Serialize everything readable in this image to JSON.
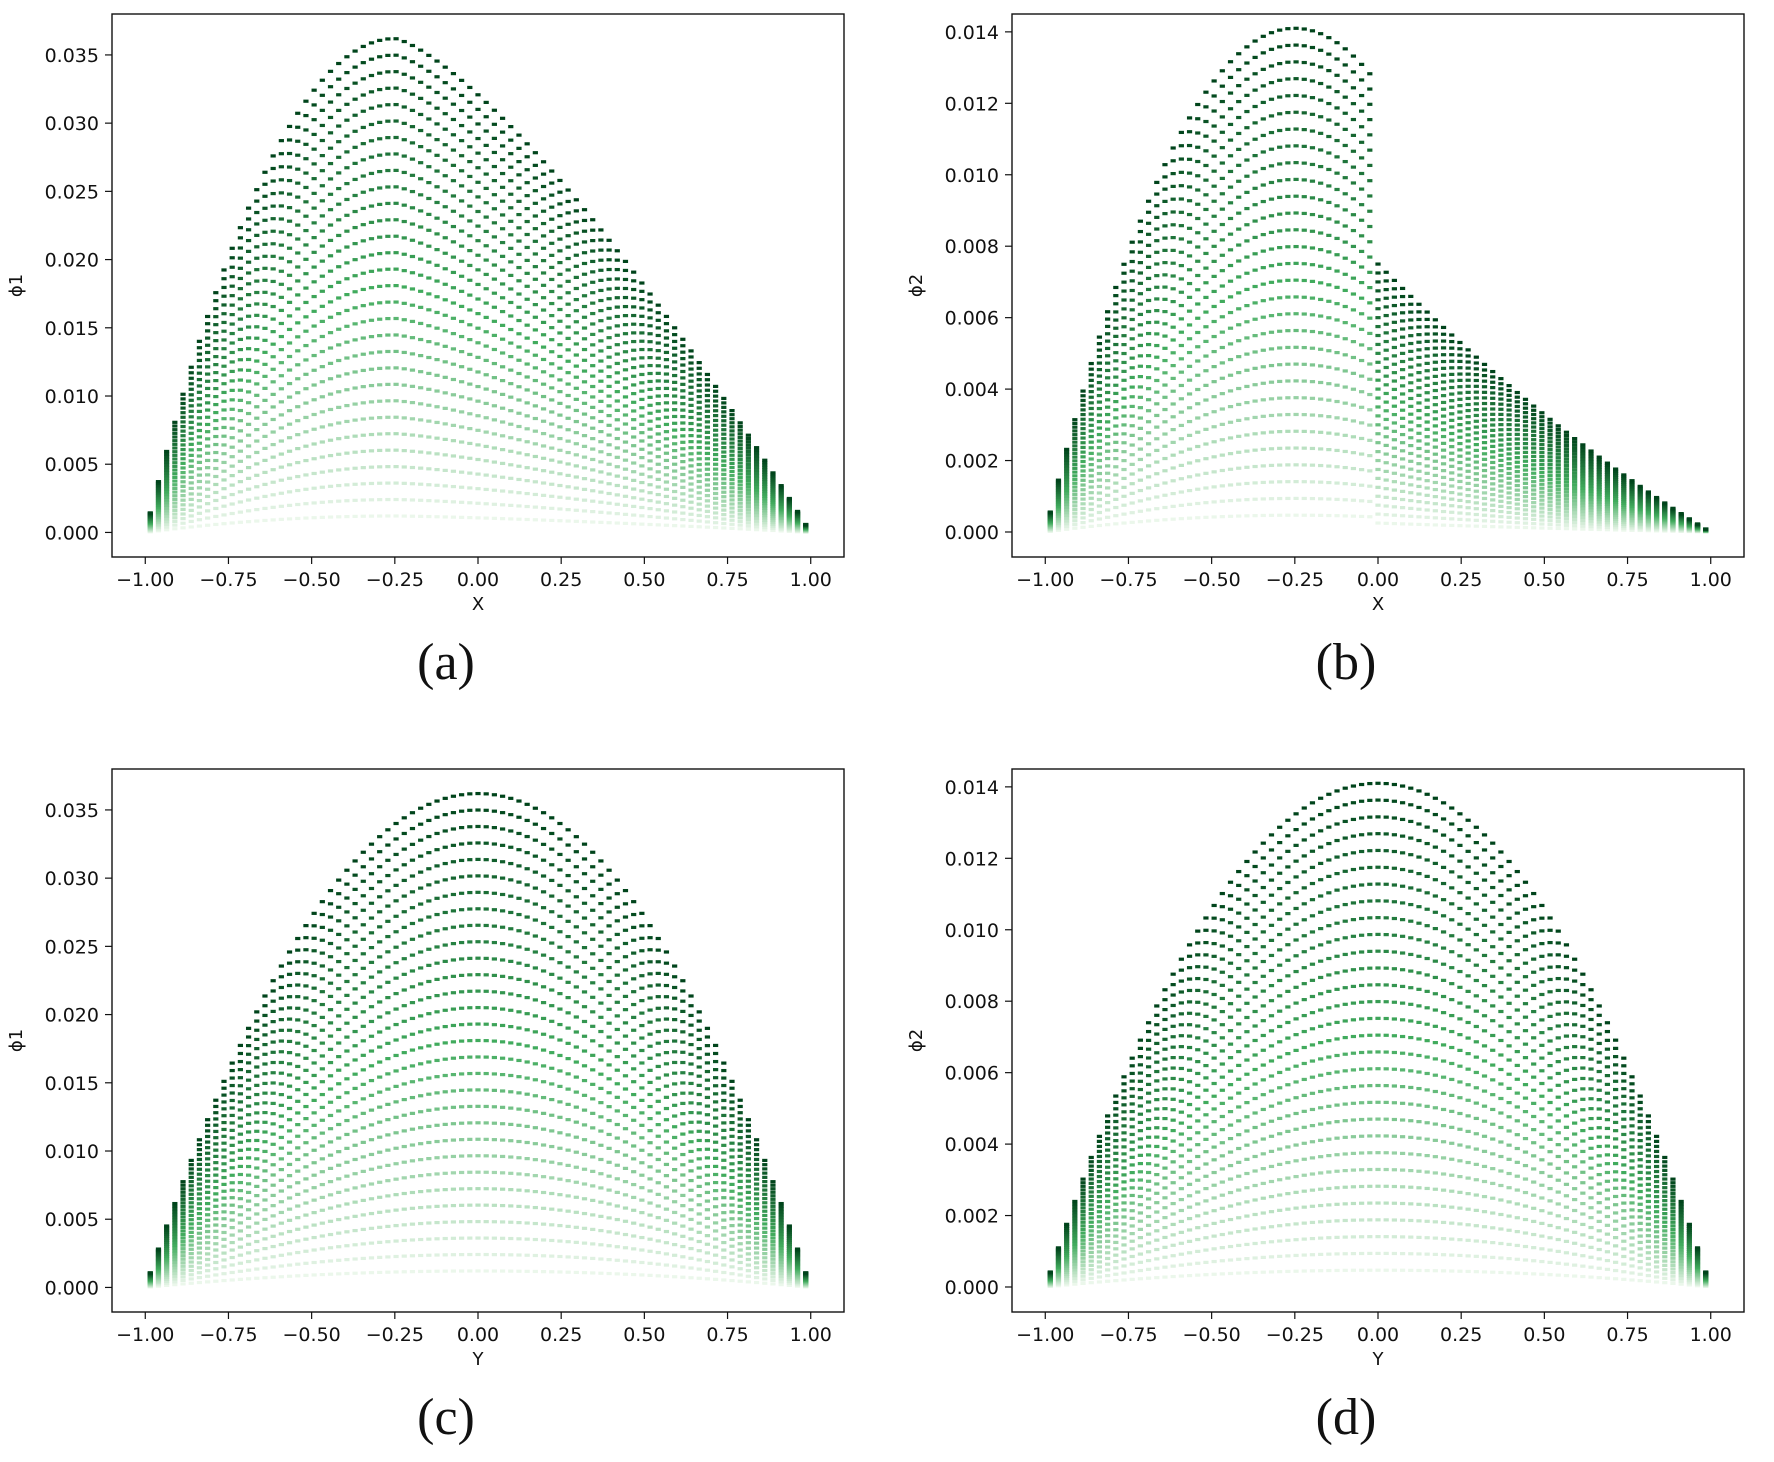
{
  "figure": {
    "colors": {
      "dark": "#00441b",
      "mid": "#41ab5d",
      "light": "#f7fcf5",
      "frame": "#111111"
    }
  },
  "chart_data": [
    {
      "id": "a",
      "type": "scatter",
      "caption": "(a)",
      "xlabel": "X",
      "ylabel": "ϕ1",
      "xlim": [
        -1.1,
        1.1
      ],
      "ylim": [
        -0.0018,
        0.038
      ],
      "xticks": [
        -1.0,
        -0.75,
        -0.5,
        -0.25,
        0.0,
        0.25,
        0.5,
        0.75,
        1.0
      ],
      "xtick_labels": [
        "−1.00",
        "−0.75",
        "−0.50",
        "−0.25",
        "0.00",
        "0.25",
        "0.50",
        "0.75",
        "1.00"
      ],
      "yticks": [
        0.0,
        0.005,
        0.01,
        0.015,
        0.02,
        0.025,
        0.03,
        0.035
      ],
      "ytick_labels": [
        "0.000",
        "0.005",
        "0.010",
        "0.015",
        "0.020",
        "0.025",
        "0.030",
        "0.035"
      ],
      "peak": 0.0362,
      "peak_at": -0.25,
      "envelope": "asymmetric-triangle",
      "description_series": "family of sampled curves, colour graded dark green (high) to pale green (low)"
    },
    {
      "id": "b",
      "type": "scatter",
      "caption": "(b)",
      "xlabel": "X",
      "ylabel": "ϕ2",
      "xlim": [
        -1.1,
        1.1
      ],
      "ylim": [
        -0.0007,
        0.0145
      ],
      "xticks": [
        -1.0,
        -0.75,
        -0.5,
        -0.25,
        0.0,
        0.25,
        0.5,
        0.75,
        1.0
      ],
      "xtick_labels": [
        "−1.00",
        "−0.75",
        "−0.50",
        "−0.25",
        "0.00",
        "0.25",
        "0.50",
        "0.75",
        "1.00"
      ],
      "yticks": [
        0.0,
        0.002,
        0.004,
        0.006,
        0.008,
        0.01,
        0.012,
        0.014
      ],
      "ytick_labels": [
        "0.000",
        "0.002",
        "0.004",
        "0.006",
        "0.008",
        "0.010",
        "0.012",
        "0.014"
      ],
      "peak": 0.0141,
      "peak_at": -0.25,
      "right_shoulder": 0.0075,
      "envelope": "bump-with-shoulder"
    },
    {
      "id": "c",
      "type": "scatter",
      "caption": "(c)",
      "xlabel": "Y",
      "ylabel": "ϕ1",
      "xlim": [
        -1.1,
        1.1
      ],
      "ylim": [
        -0.0018,
        0.038
      ],
      "xticks": [
        -1.0,
        -0.75,
        -0.5,
        -0.25,
        0.0,
        0.25,
        0.5,
        0.75,
        1.0
      ],
      "xtick_labels": [
        "−1.00",
        "−0.75",
        "−0.50",
        "−0.25",
        "0.00",
        "0.25",
        "0.50",
        "0.75",
        "1.00"
      ],
      "yticks": [
        0.0,
        0.005,
        0.01,
        0.015,
        0.02,
        0.025,
        0.03,
        0.035
      ],
      "ytick_labels": [
        "0.000",
        "0.005",
        "0.010",
        "0.015",
        "0.020",
        "0.025",
        "0.030",
        "0.035"
      ],
      "peak": 0.0362,
      "peak_at": 0.0,
      "envelope": "parabola"
    },
    {
      "id": "d",
      "type": "scatter",
      "caption": "(d)",
      "xlabel": "Y",
      "ylabel": "ϕ2",
      "xlim": [
        -1.1,
        1.1
      ],
      "ylim": [
        -0.0007,
        0.0145
      ],
      "xticks": [
        -1.0,
        -0.75,
        -0.5,
        -0.25,
        0.0,
        0.25,
        0.5,
        0.75,
        1.0
      ],
      "xtick_labels": [
        "−1.00",
        "−0.75",
        "−0.50",
        "−0.25",
        "0.00",
        "0.25",
        "0.50",
        "0.75",
        "1.00"
      ],
      "yticks": [
        0.0,
        0.002,
        0.004,
        0.006,
        0.008,
        0.01,
        0.012,
        0.014
      ],
      "ytick_labels": [
        "0.000",
        "0.002",
        "0.004",
        "0.006",
        "0.008",
        "0.010",
        "0.012",
        "0.014"
      ],
      "peak": 0.0141,
      "peak_at": 0.0,
      "envelope": "parabola"
    }
  ]
}
